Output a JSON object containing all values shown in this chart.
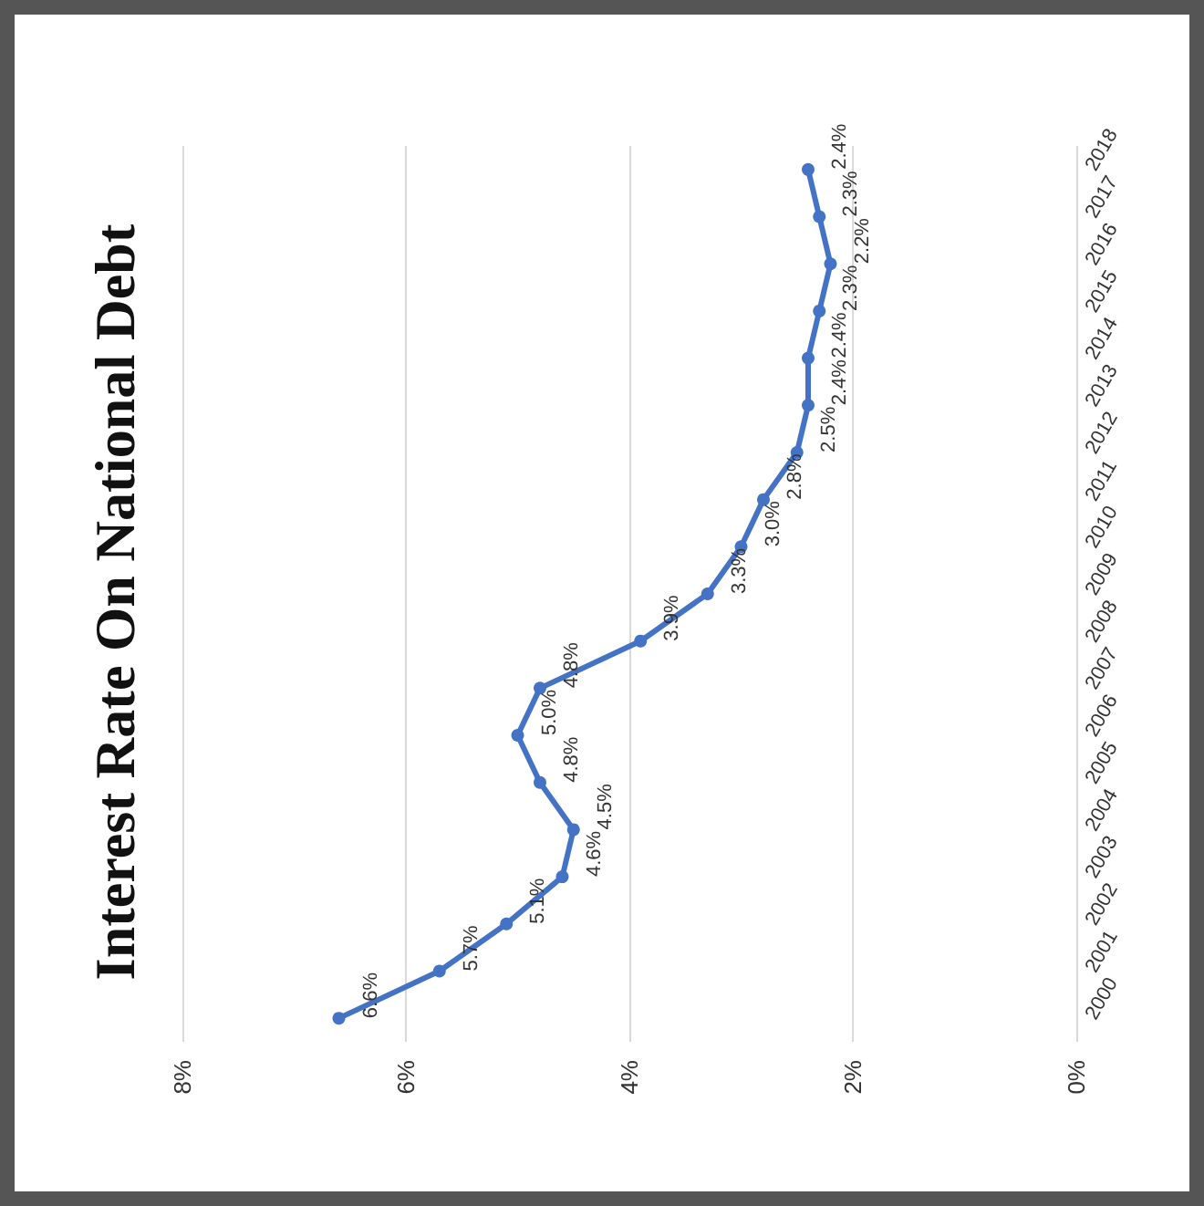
{
  "chart_data": {
    "type": "line",
    "title": "Interest Rate On National Debt",
    "orientation": "horizontal",
    "categories": [
      "2018",
      "2017",
      "2016",
      "2015",
      "2014",
      "2013",
      "2012",
      "2011",
      "2010",
      "2009",
      "2008",
      "2007",
      "2006",
      "2005",
      "2004",
      "2003",
      "2002",
      "2001",
      "2000"
    ],
    "series": [
      {
        "color": "#4472c4",
        "values": [
          2.4,
          2.3,
          2.2,
          2.3,
          2.4,
          2.4,
          2.5,
          2.8,
          3.0,
          3.3,
          3.9,
          4.8,
          5.0,
          4.8,
          4.5,
          4.6,
          5.1,
          5.7,
          6.6
        ],
        "value_labels": [
          "2.4%",
          "2.3%",
          "2.2%",
          "2.3%",
          "2.4%",
          "2.4%",
          "2.5%",
          "2.8%",
          "3.0%",
          "3.3%",
          "3.9%",
          "4.8%",
          "5.0%",
          "4.8%",
          "4.5%",
          "4.6%",
          "5.1%",
          "5.7%",
          "6.6%"
        ]
      }
    ],
    "xlim": [
      8,
      0
    ],
    "xticks": [
      {
        "value": 8,
        "label": "8%"
      },
      {
        "value": 6,
        "label": "6%"
      },
      {
        "value": 4,
        "label": "4%"
      },
      {
        "value": 2,
        "label": "2%"
      },
      {
        "value": 0,
        "label": "0%"
      }
    ],
    "grid": "x",
    "marker": "circle",
    "line_style": "solid"
  }
}
